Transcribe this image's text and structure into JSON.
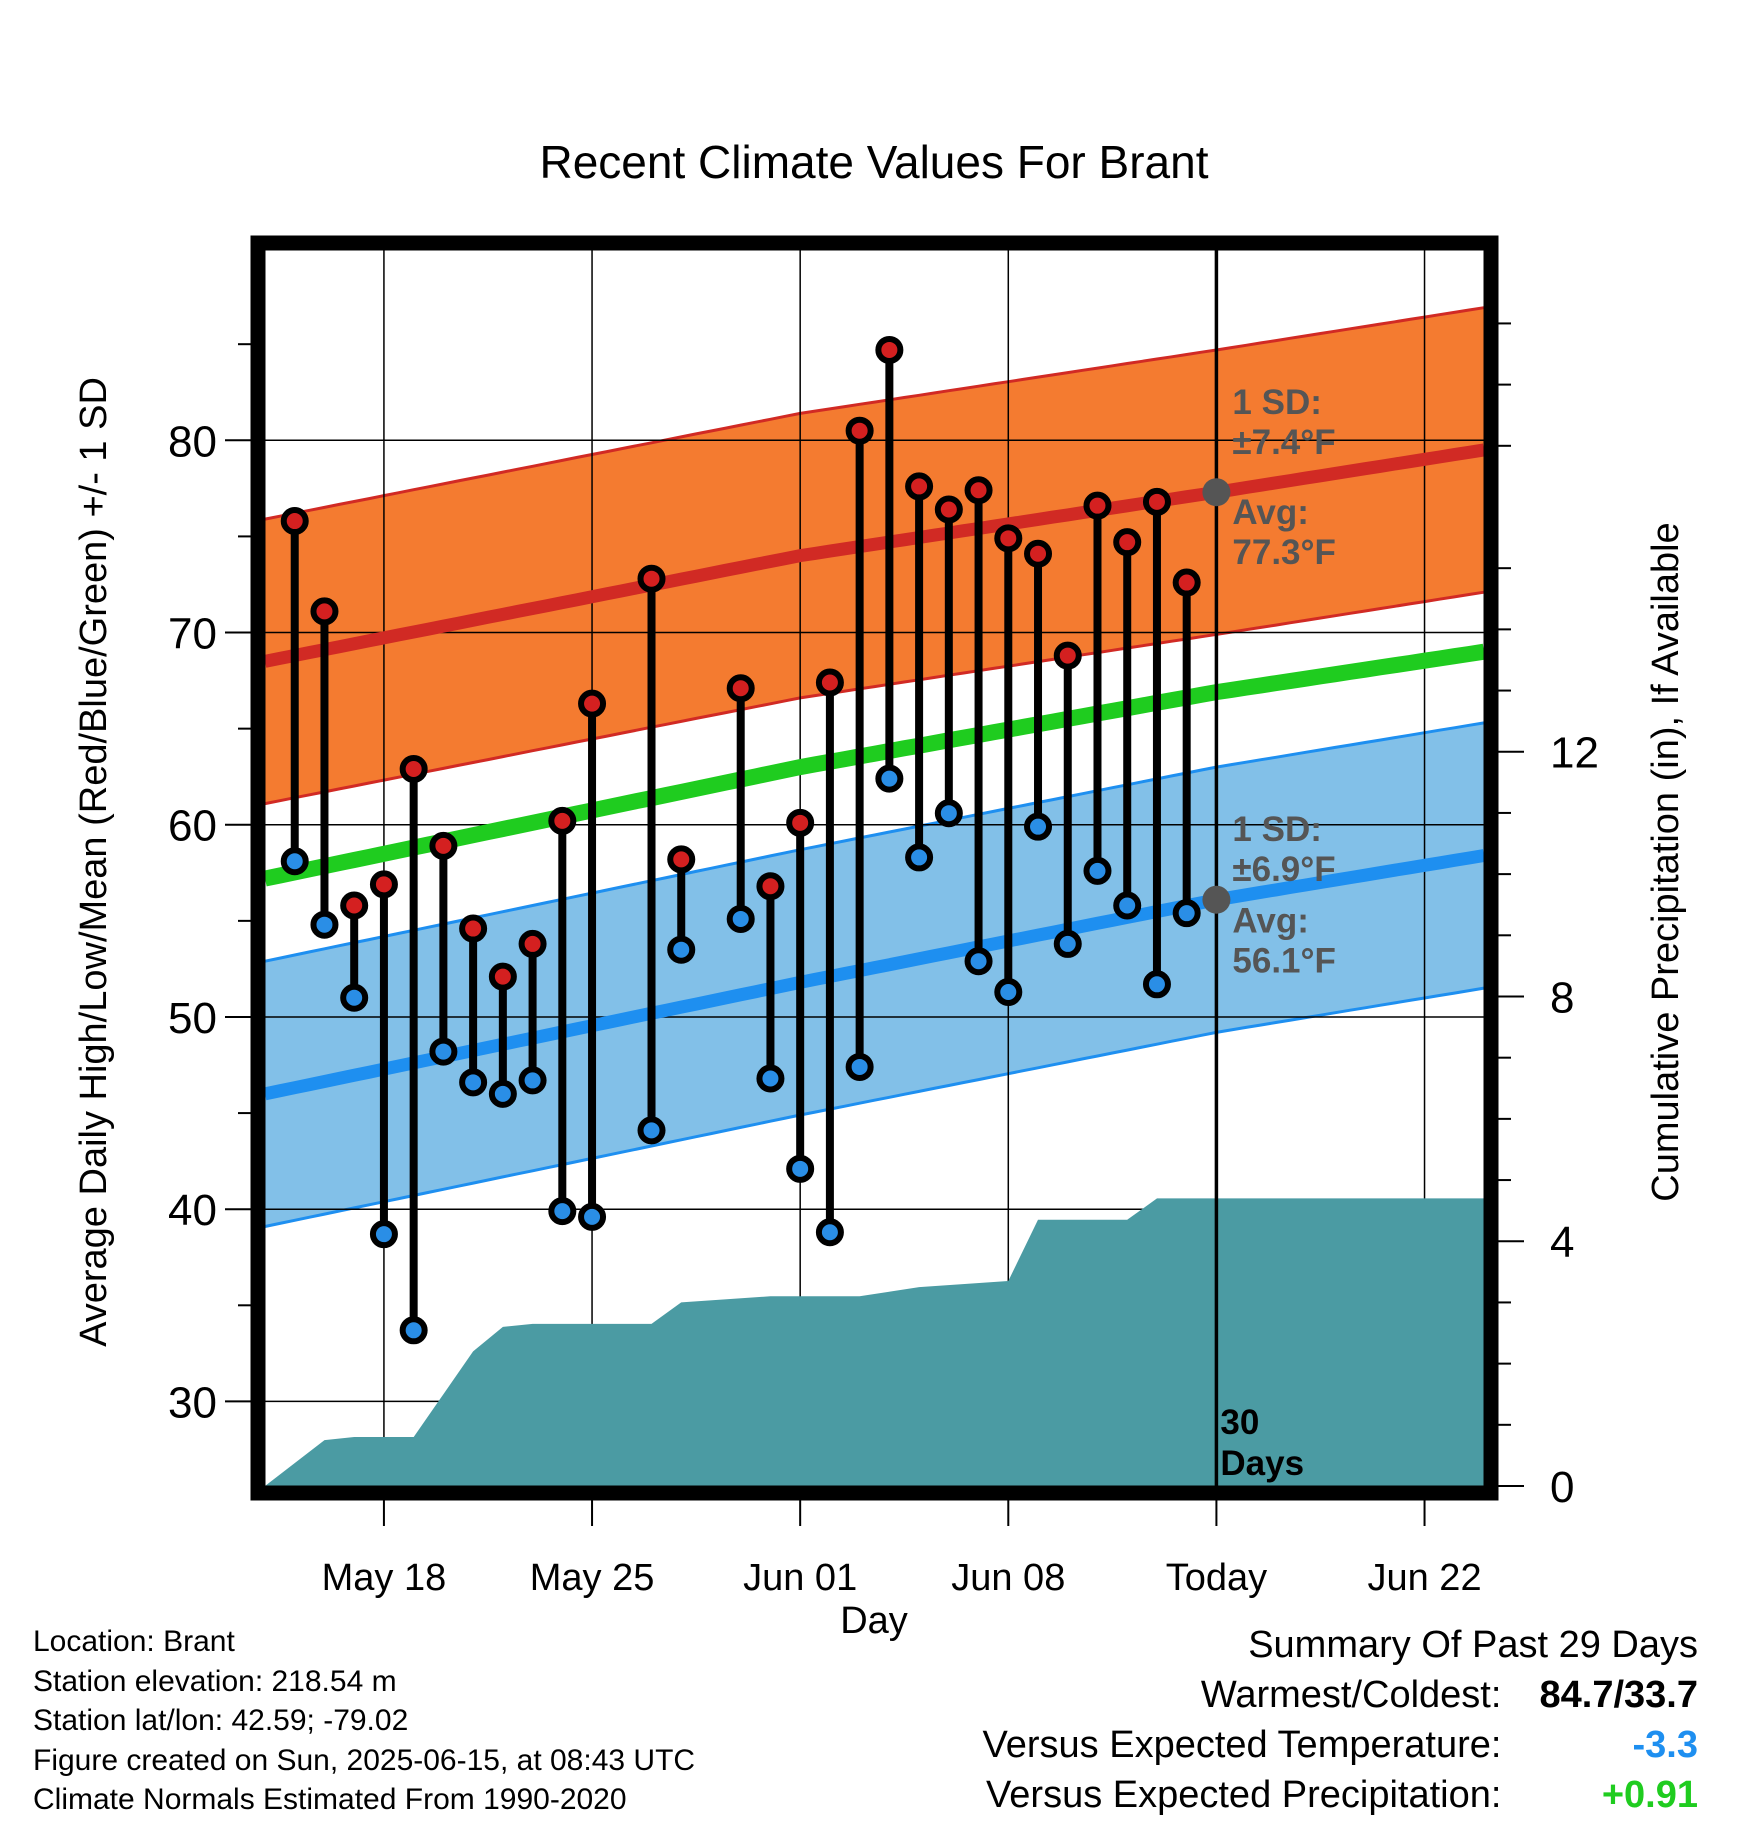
{
  "chart_data": {
    "type": "line",
    "title": "Recent Climate Values For Brant",
    "xlabel": "Day",
    "ylabel": "Average Daily High/Low/Mean (Red/Blue/Green) +/- 1 SD",
    "y2label": "Cumulative Precipitation (in), If Available",
    "x_tick_labels": [
      "May 18",
      "May 25",
      "Jun 01",
      "Jun 08",
      "Today",
      "Jun 22"
    ],
    "x_ticks": [
      "2025-05-18",
      "2025-05-25",
      "2025-06-01",
      "2025-06-08",
      "2025-06-15",
      "2025-06-22"
    ],
    "xlim": [
      "2025-05-14",
      "2025-06-24"
    ],
    "ylim": [
      25.6,
      89.9
    ],
    "y_ticks": [
      30,
      40,
      50,
      60,
      70,
      80
    ],
    "y2lim": [
      0,
      20.2
    ],
    "y2_ticks": [
      0,
      4,
      8,
      12
    ],
    "today": "2025-06-15",
    "grid": true,
    "observed": {
      "dates": [
        "2025-05-15",
        "2025-05-16",
        "2025-05-17",
        "2025-05-18",
        "2025-05-19",
        "2025-05-20",
        "2025-05-21",
        "2025-05-22",
        "2025-05-23",
        "2025-05-24",
        "2025-05-25",
        "2025-05-26",
        "2025-05-27",
        "2025-05-28",
        "2025-05-29",
        "2025-05-30",
        "2025-05-31",
        "2025-06-01",
        "2025-06-02",
        "2025-06-03",
        "2025-06-04",
        "2025-06-05",
        "2025-06-06",
        "2025-06-07",
        "2025-06-08",
        "2025-06-09",
        "2025-06-10",
        "2025-06-11",
        "2025-06-12",
        "2025-06-13",
        "2025-06-14"
      ],
      "high": [
        75.8,
        71.1,
        55.8,
        56.9,
        62.9,
        58.9,
        54.6,
        52.1,
        53.8,
        60.2,
        66.3,
        null,
        72.8,
        58.2,
        null,
        67.1,
        56.8,
        60.1,
        67.4,
        80.5,
        84.7,
        77.6,
        76.4,
        77.4,
        74.9,
        74.1,
        68.8,
        76.6,
        74.7,
        76.8,
        72.6
      ],
      "low": [
        58.1,
        54.8,
        51.0,
        38.7,
        33.7,
        48.2,
        46.6,
        46.0,
        46.7,
        39.9,
        39.6,
        null,
        44.1,
        53.5,
        null,
        55.1,
        46.8,
        42.1,
        38.8,
        47.4,
        62.4,
        58.3,
        60.6,
        52.9,
        51.3,
        59.9,
        53.8,
        57.6,
        55.8,
        51.7,
        55.4
      ]
    },
    "normals": {
      "dates": [
        "2025-05-14",
        "2025-06-01",
        "2025-06-15",
        "2025-06-24"
      ],
      "high_mean": [
        68.5,
        74.0,
        77.3,
        79.5
      ],
      "high_sd": 7.4,
      "low_mean": [
        46.0,
        51.8,
        56.1,
        58.4
      ],
      "low_sd": 6.9,
      "daily_mean": [
        57.2,
        63.0,
        66.9,
        69.0
      ]
    },
    "precipitation": {
      "dates": [
        "2025-05-14",
        "2025-05-16",
        "2025-05-17",
        "2025-05-19",
        "2025-05-20",
        "2025-05-21",
        "2025-05-22",
        "2025-05-23",
        "2025-05-27",
        "2025-05-28",
        "2025-05-31",
        "2025-06-03",
        "2025-06-05",
        "2025-06-08",
        "2025-06-09",
        "2025-06-12",
        "2025-06-13",
        "2025-06-15",
        "2025-06-24"
      ],
      "cumulative": [
        0.0,
        0.75,
        0.8,
        0.8,
        1.5,
        2.2,
        2.6,
        2.65,
        2.65,
        3.0,
        3.1,
        3.1,
        3.25,
        3.35,
        4.35,
        4.35,
        4.7,
        4.7,
        4.7
      ]
    },
    "annotations": {
      "high_sd_line1": "1 SD:",
      "high_sd_line2": "±7.4°F",
      "high_avg_line1": "Avg:",
      "high_avg_line2": "77.3°F",
      "low_sd_line1": "1 SD:",
      "low_sd_line2": "±6.9°F",
      "low_avg_line1": "Avg:",
      "low_avg_line2": "56.1°F",
      "days_line1": "30",
      "days_line2": "Days"
    },
    "colors": {
      "high_band": "#f47b30",
      "high_line": "#d12a24",
      "low_band": "#82c0e8",
      "low_line": "#1e8ff0",
      "mean_line": "#1fcc1f",
      "precip": "#4b9ba3",
      "annotation": "#555555",
      "high_dot": "#d42020",
      "low_dot": "#2a8ee6"
    }
  },
  "info": {
    "location": "Location: Brant",
    "elevation": "Station elevation: 218.54 m",
    "latlon": "Station lat/lon: 42.59; -79.02",
    "created": "Figure created on Sun, 2025-06-15, at 08:43 UTC",
    "normals": "Climate Normals Estimated From 1990-2020"
  },
  "summary": {
    "title": "Summary Of Past 29 Days",
    "warmest_label": "Warmest/Coldest:",
    "warmest_value": "84.7/33.7",
    "temp_label": "Versus Expected Temperature:",
    "temp_value": "-3.3",
    "temp_color": "#1e8ff0",
    "precip_label": "Versus Expected Precipitation:",
    "precip_value": "+0.91",
    "precip_color": "#1fcc1f"
  }
}
